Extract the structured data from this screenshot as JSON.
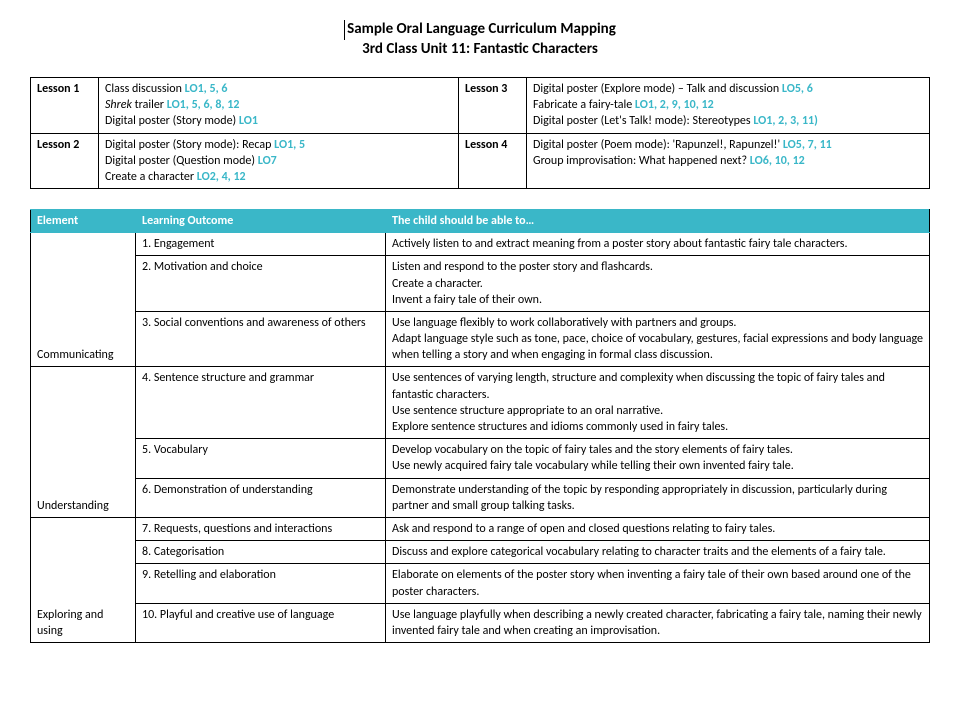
{
  "title": {
    "line1": "Sample Oral Language Curriculum Mapping",
    "line2": "3rd Class Unit 11: Fantastic Characters"
  },
  "lessons": [
    {
      "label": "Lesson 1",
      "items": [
        {
          "text": "Class discussion ",
          "lo": "LO1, 5, 6"
        },
        {
          "italic": "Shrek",
          "text": " trailer ",
          "lo": "LO1, 5, 6, 8, 12"
        },
        {
          "text": "Digital poster (Story mode) ",
          "lo": "LO1"
        }
      ],
      "label2": "Lesson 3",
      "items2": [
        {
          "text": "Digital poster (Explore mode) – Talk and discussion ",
          "lo": "LO5, 6"
        },
        {
          "text": "Fabricate a fairy-tale ",
          "lo": "LO1, 2, 9, 10, 12"
        },
        {
          "text": "Digital poster (Let's Talk! mode): Stereotypes ",
          "lo": "LO1, 2, 3, 11)"
        }
      ]
    },
    {
      "label": "Lesson 2",
      "items": [
        {
          "text": "Digital poster (Story mode): Recap ",
          "lo": "LO1, 5"
        },
        {
          "text": "Digital poster (Question mode) ",
          "lo": "LO7"
        },
        {
          "text": "Create a character ",
          "lo": "LO2, 4, 12"
        }
      ],
      "label2": "Lesson 4",
      "items2": [
        {
          "text": "Digital poster (Poem mode): 'Rapunzel!, Rapunzel!' ",
          "lo": "LO5, 7, 11"
        },
        {
          "text": "Group improvisation: What happened next? ",
          "lo": "LO6, 10, 12"
        }
      ]
    }
  ],
  "headers": {
    "element": "Element",
    "outcome": "Learning Outcome",
    "ability": "The child should be able to…"
  },
  "groups": [
    {
      "element": "Communicating",
      "rows": [
        {
          "lo": "1. Engagement",
          "ab": "Actively listen to and extract meaning from a poster story about fantastic fairy tale characters."
        },
        {
          "lo": "2. Motivation and choice",
          "ab": "Listen and respond to the poster story and flashcards.\nCreate a character.\nInvent a fairy tale of their own."
        },
        {
          "lo": "3. Social conventions and awareness of others",
          "ab": "Use language flexibly to work collaboratively with partners and groups.\nAdapt language style such as tone, pace, choice of vocabulary, gestures, facial expressions and body language when telling a story and when engaging in formal class discussion."
        }
      ]
    },
    {
      "element": "Understanding",
      "rows": [
        {
          "lo": "4. Sentence structure and grammar",
          "ab": "Use sentences of varying length, structure and complexity when discussing the topic of fairy tales and fantastic characters.\nUse sentence structure appropriate to an oral narrative.\nExplore sentence structures and idioms commonly used in fairy tales."
        },
        {
          "lo": "5. Vocabulary",
          "ab": "Develop vocabulary on the topic of fairy tales and the story elements of fairy tales.\nUse newly acquired fairy tale vocabulary while telling their own invented fairy tale."
        },
        {
          "lo": "6. Demonstration of understanding",
          "ab": "Demonstrate understanding of the topic by responding appropriately in discussion, particularly during partner and small group talking tasks."
        }
      ]
    },
    {
      "element": "Exploring and using",
      "rows": [
        {
          "lo": "7. Requests, questions and interactions",
          "ab": "Ask and respond to a range of open and closed questions relating to fairy tales."
        },
        {
          "lo": "8. Categorisation",
          "ab": "Discuss and explore categorical vocabulary relating to character traits and the elements of a fairy tale."
        },
        {
          "lo": "9. Retelling and elaboration",
          "ab": "Elaborate on elements of the poster story when inventing a fairy tale of their own based around one of the poster characters."
        },
        {
          "lo": "10. Playful and creative use of language",
          "ab": "Use language playfully when describing a newly created character, fabricating a fairy tale, naming their newly invented fairy tale and when creating an improvisation."
        }
      ]
    }
  ]
}
